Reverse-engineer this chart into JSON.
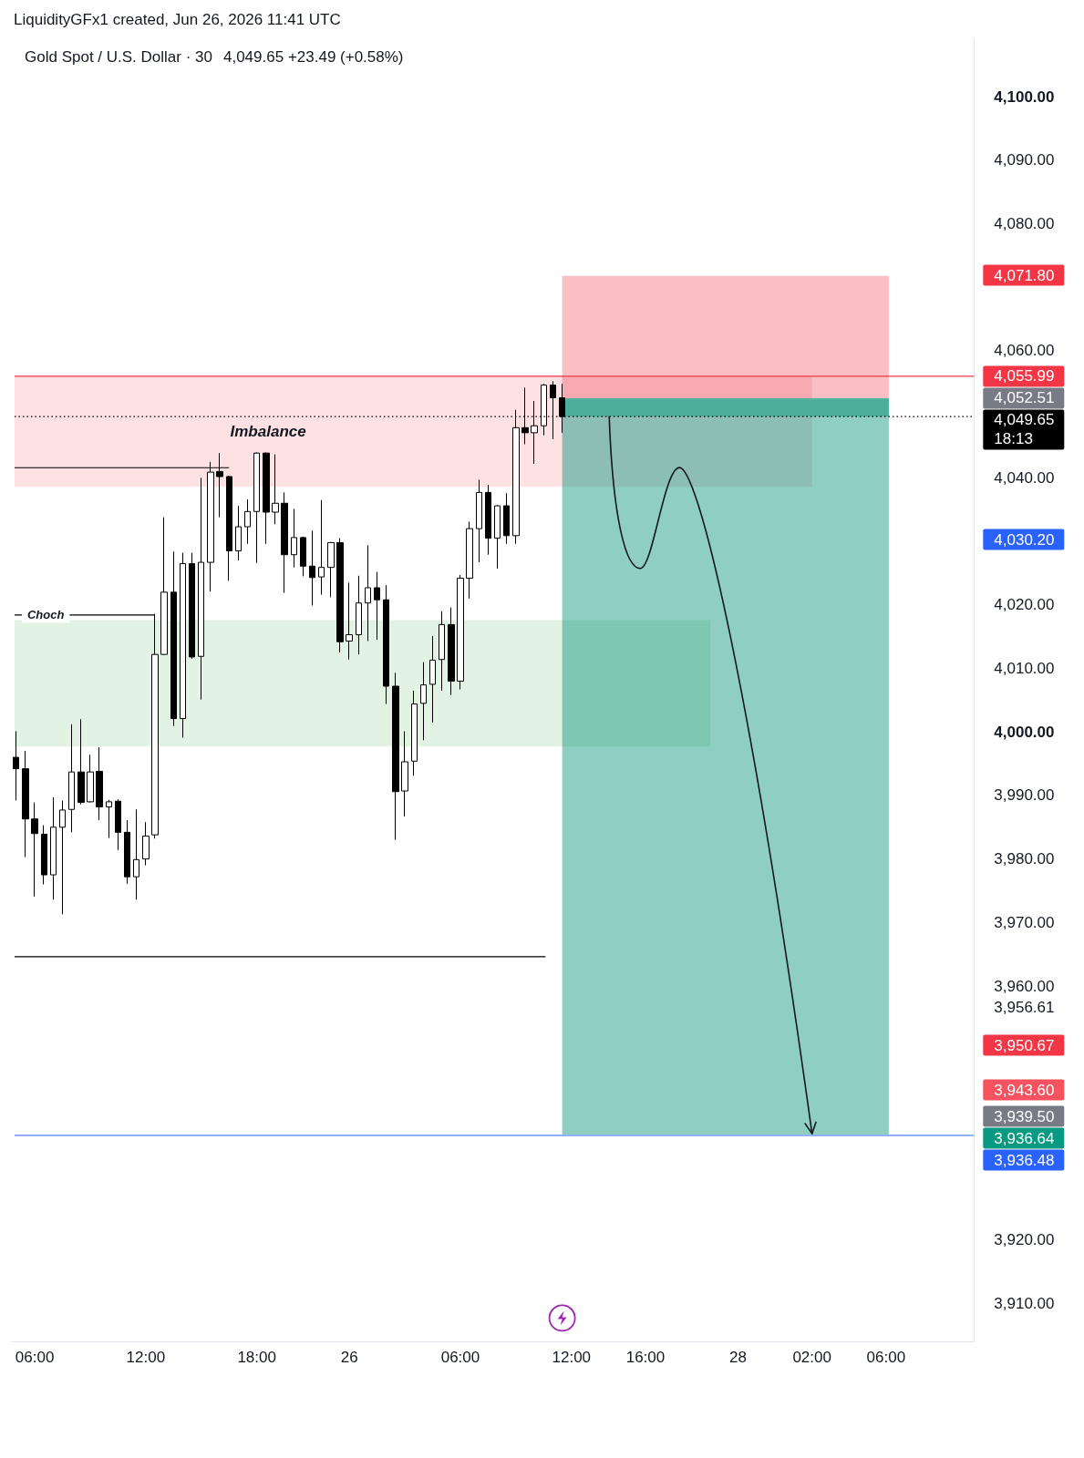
{
  "chart_data": {
    "type": "candlestick",
    "title": "Gold Spot / U.S. Dollar · 30",
    "subtitle": "4,049.65 +23.49 (+0.58%)",
    "annotations": [
      "LiquidityGFx1 created, Jun 26, 2026 11:41 UTC",
      "4,071.80",
      "4,052.51",
      "4,030.20",
      "3,950.67",
      "3,943.60",
      "3,939.50",
      "3,936.64"
    ],
    "categories": [
      null,
      null,
      "06:00",
      null,
      null,
      null,
      null,
      null,
      null,
      null,
      null,
      null,
      null,
      null,
      "12:00",
      null,
      null,
      null,
      null,
      null,
      null,
      null,
      null,
      null,
      null,
      null,
      "18:00",
      null,
      null,
      null,
      null,
      null,
      null,
      null,
      null,
      null,
      "26",
      null,
      null,
      null,
      null,
      null,
      null,
      null,
      null,
      null,
      null,
      null,
      "06:00",
      null,
      null,
      null,
      null,
      null,
      null,
      null,
      null,
      null,
      null,
      null,
      "12:00",
      null,
      null,
      null,
      null,
      null,
      null,
      null,
      "16:00",
      null,
      null,
      null,
      null,
      null,
      null,
      null,
      null,
      null,
      "28",
      null,
      null,
      null,
      null,
      null,
      null,
      null,
      "02:00",
      null,
      null,
      null,
      null,
      null,
      null,
      null,
      "06:00",
      null,
      null,
      null,
      null,
      null,
      null,
      null,
      null,
      null
    ],
    "ohlc": [
      [
        3996.0,
        4000.1,
        3989.2,
        3994.2
      ],
      [
        3994.2,
        3997.0,
        3980.3,
        3986.3
      ],
      [
        3986.3,
        3988.9,
        3974.1,
        3984.0
      ],
      [
        3983.9,
        3985.3,
        3976.0,
        3977.5
      ],
      [
        3977.5,
        3989.7,
        3973.6,
        3985.0
      ],
      [
        3985.0,
        3989.2,
        3971.3,
        3987.7
      ],
      [
        3987.8,
        4001.2,
        3984.2,
        3993.7
      ],
      [
        3993.7,
        4002.0,
        3988.6,
        3988.9
      ],
      [
        3989.0,
        3996.4,
        3988.9,
        3993.7
      ],
      [
        3993.8,
        3997.6,
        3986.1,
        3988.2
      ],
      [
        3988.2,
        3989.3,
        3983.3,
        3989.0
      ],
      [
        3989.1,
        3989.4,
        3981.4,
        3984.2
      ],
      [
        3984.2,
        3986.1,
        3976.1,
        3977.2
      ],
      [
        3977.2,
        3987.8,
        3973.6,
        3979.9
      ],
      [
        3980.0,
        3985.8,
        3979.0,
        3983.6
      ],
      [
        3983.8,
        4018.6,
        3983.2,
        4012.2
      ],
      [
        4012.2,
        4033.8,
        4012.1,
        4022.0
      ],
      [
        4022.0,
        4028.4,
        4000.9,
        4002.1
      ],
      [
        4002.1,
        4028.2,
        3999.1,
        4026.5
      ],
      [
        4026.5,
        4028.2,
        4011.5,
        4011.8
      ],
      [
        4011.9,
        4040.0,
        4005.1,
        4026.7
      ],
      [
        4026.7,
        4042.5,
        4022.1,
        4040.9
      ],
      [
        4041.0,
        4043.9,
        4033.8,
        4040.2
      ],
      [
        4040.2,
        4040.3,
        4023.8,
        4028.5
      ],
      [
        4028.5,
        4035.6,
        4027.0,
        4032.3
      ],
      [
        4032.3,
        4036.6,
        4029.6,
        4034.7
      ],
      [
        4034.7,
        4044.0,
        4026.6,
        4043.9
      ],
      [
        4043.9,
        4044.0,
        4029.6,
        4034.6
      ],
      [
        4034.6,
        4043.7,
        4032.7,
        4036.0
      ],
      [
        4036.0,
        4037.7,
        4021.9,
        4027.9
      ],
      [
        4027.9,
        4035.1,
        4025.9,
        4030.6
      ],
      [
        4030.6,
        4030.7,
        4024.5,
        4026.1
      ],
      [
        4026.1,
        4031.7,
        4019.9,
        4024.3
      ],
      [
        4024.4,
        4036.5,
        4021.6,
        4025.9
      ],
      [
        4025.9,
        4029.9,
        4021.2,
        4029.8
      ],
      [
        4029.8,
        4030.5,
        4012.5,
        4014.2
      ],
      [
        4014.3,
        4023.5,
        4011.4,
        4015.3
      ],
      [
        4015.3,
        4024.6,
        4012.2,
        4020.3
      ],
      [
        4020.3,
        4029.4,
        4014.3,
        4022.7
      ],
      [
        4022.7,
        4025.2,
        4014.5,
        4020.8
      ],
      [
        4020.8,
        4023.1,
        4004.4,
        4007.2
      ],
      [
        4007.2,
        4009.3,
        3983.0,
        3990.6
      ],
      [
        3990.7,
        4000.1,
        3986.7,
        3995.3
      ],
      [
        3995.4,
        4006.5,
        3993.1,
        4004.4
      ],
      [
        4004.5,
        4011.0,
        3998.7,
        4007.4
      ],
      [
        4007.5,
        4015.1,
        4001.5,
        4011.3
      ],
      [
        4011.4,
        4019.0,
        4006.5,
        4016.9
      ],
      [
        4016.9,
        4019.6,
        4005.8,
        4008.0
      ],
      [
        4008.0,
        4024.7,
        4006.7,
        4024.2
      ],
      [
        4024.2,
        4033.1,
        4021.0,
        4032.0
      ],
      [
        4032.0,
        4039.7,
        4026.7,
        4037.7
      ],
      [
        4037.7,
        4038.9,
        4027.9,
        4030.5
      ],
      [
        4030.5,
        4035.7,
        4025.7,
        4035.6
      ],
      [
        4035.6,
        4037.6,
        4029.6,
        4030.9
      ],
      [
        4030.9,
        4050.7,
        4029.6,
        4047.9
      ],
      [
        4047.9,
        4054.2,
        4045.3,
        4047.1
      ],
      [
        4047.1,
        4052.1,
        4042.2,
        4048.2
      ],
      [
        4048.2,
        4054.8,
        4046.7,
        4054.6
      ],
      [
        4054.6,
        4055.2,
        4046.1,
        4052.6
      ],
      [
        4052.6,
        4054.8,
        4047.1,
        4049.65
      ],
      null,
      null,
      null,
      null,
      null,
      null,
      null,
      null,
      null,
      null,
      null,
      null,
      null,
      null,
      null,
      null,
      null,
      null,
      null,
      null,
      null,
      null,
      null,
      null,
      null,
      null,
      null,
      null,
      null,
      null,
      null,
      null,
      null,
      null,
      null,
      null,
      null,
      null,
      null,
      null,
      null,
      null,
      null,
      null
    ],
    "colors": [
      "#000000",
      "#000000",
      "#000000",
      "#000000",
      "#ffffff",
      "#ffffff",
      "#ffffff",
      "#000000",
      "#ffffff",
      "#000000",
      "#ffffff",
      "#000000",
      "#000000",
      "#ffffff",
      "#ffffff",
      "#ffffff",
      "#ffffff",
      "#000000",
      "#ffffff",
      "#000000",
      "#ffffff",
      "#ffffff",
      "#000000",
      "#000000",
      "#ffffff",
      "#ffffff",
      "#ffffff",
      "#000000",
      "#ffffff",
      "#000000",
      "#ffffff",
      "#000000",
      "#000000",
      "#ffffff",
      "#ffffff",
      "#000000",
      "#ffffff",
      "#ffffff",
      "#ffffff",
      "#000000",
      "#000000",
      "#000000",
      "#ffffff",
      "#ffffff",
      "#ffffff",
      "#ffffff",
      "#ffffff",
      "#000000",
      "#ffffff",
      "#ffffff",
      "#ffffff",
      "#000000",
      "#ffffff",
      "#000000",
      "#ffffff",
      "#000000",
      "#ffffff",
      "#ffffff",
      "#000000",
      "#000000",
      null,
      null,
      null,
      null,
      null,
      null,
      null,
      null,
      null,
      null,
      null,
      null,
      null,
      null,
      null,
      null,
      null,
      null,
      null,
      null,
      null,
      null,
      null,
      null,
      null,
      null,
      null,
      null,
      null,
      null,
      null,
      null,
      null,
      null,
      null,
      null,
      null,
      null,
      null,
      null,
      null,
      null,
      null,
      null
    ],
    "color": "#000000",
    "ylim": [
      3904,
      4109
    ],
    "yticks": [
      {
        "value": 3910,
        "label": "3,910.00"
      },
      {
        "value": 3920,
        "label": "3,920.00"
      },
      {
        "value": 3956.61,
        "label": "3,956.61"
      },
      {
        "value": 3960,
        "label": "3,960.00"
      },
      {
        "value": 3970,
        "label": "3,970.00"
      },
      {
        "value": 3980,
        "label": "3,980.00"
      },
      {
        "value": 3990,
        "label": "3,990.00"
      },
      {
        "value": 4000,
        "label": "4,000.00"
      },
      {
        "value": 4010,
        "label": "4,010.00"
      },
      {
        "value": 4020,
        "label": "4,020.00"
      },
      {
        "value": 4040,
        "label": "4,040.00"
      },
      {
        "value": 4060,
        "label": "4,060.00"
      },
      {
        "value": 4080,
        "label": "4,080.00"
      },
      {
        "value": 4090,
        "label": "4,090.00"
      },
      {
        "value": 4100,
        "label": "4,100.00"
      }
    ],
    "bands": [
      {
        "axis": "y",
        "from": 3997.7,
        "to": 4017.6,
        "color": "#e2f2e3"
      },
      {
        "axis": "y",
        "from": 4038.6,
        "to": 4055.99,
        "label": "Imbalance",
        "color": "#fde1e3"
      },
      {
        "axis": "y",
        "from": 3936.64,
        "to": 4052.51,
        "color": "#8ecfc2"
      },
      {
        "axis": "y",
        "from": 4052.51,
        "to": 4071.8,
        "color": "#f9bfc5"
      },
      {
        "axis": "y",
        "from": 4049.65,
        "to": 4052.51,
        "color": "#4caf9b"
      }
    ],
    "ref_lines": [
      {
        "axis": "y",
        "value": 4055.99,
        "label": "4,055.99",
        "color": "#f23645",
        "line_style": "solid"
      },
      {
        "axis": "y",
        "value": 4049.65,
        "label": "4,049.65\n18:13",
        "color": "#000000",
        "line_style": "dotted"
      },
      {
        "axis": "y",
        "value": 4041.6,
        "color": "#000000",
        "line_style": "solid"
      },
      {
        "axis": "y",
        "value": 4018.4,
        "label": "Choch",
        "color": "#000000",
        "line_style": "solid"
      },
      {
        "axis": "y",
        "value": 3964.6,
        "color": "#000000",
        "line_style": "solid"
      },
      {
        "axis": "y",
        "value": 3936.48,
        "label": "3,936.48",
        "color": "#2962ff",
        "line_style": "solid"
      }
    ]
  }
}
